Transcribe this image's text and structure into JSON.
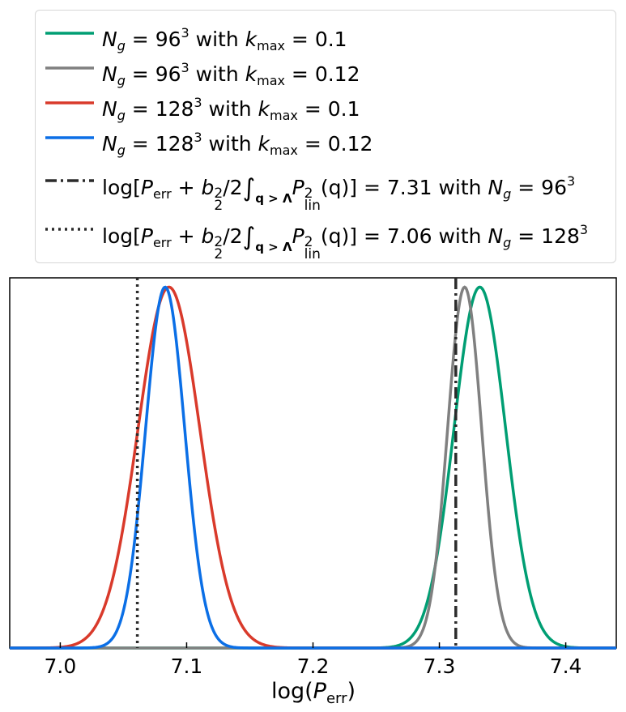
{
  "chart_data": {
    "type": "line",
    "xlabel_main": "log(",
    "xlabel_var": "P",
    "xlabel_sub": "err",
    "xlabel_close": ")",
    "xlim": [
      6.96,
      7.44
    ],
    "xticks": [
      7.0,
      7.1,
      7.2,
      7.3,
      7.4
    ],
    "xtick_labels": [
      "7.0",
      "7.1",
      "7.2",
      "7.3",
      "7.4"
    ],
    "yticks": "none",
    "grid": false,
    "legend_placement": "top (outside plot)",
    "series": [
      {
        "key": "s1",
        "color": "#009E73",
        "mean": 7.332,
        "sigma": 0.0205,
        "peak": 0.975
      },
      {
        "key": "s2",
        "color": "#808080",
        "mean": 7.32,
        "sigma": 0.0135,
        "peak": 0.975
      },
      {
        "key": "s3",
        "color": "#D93A2B",
        "mean": 7.086,
        "sigma": 0.0245,
        "peak": 0.975
      },
      {
        "key": "s4",
        "color": "#0B6FE6",
        "mean": 7.083,
        "sigma": 0.0155,
        "peak": 0.975
      }
    ],
    "vlines": [
      {
        "key": "v1",
        "x": 7.313,
        "style": "dashdot",
        "color": "#2b2b2b"
      },
      {
        "key": "v2",
        "x": 7.061,
        "style": "dotted",
        "color": "#2b2b2b"
      }
    ]
  },
  "legend": {
    "rows": [
      {
        "kind": "line",
        "color": "#009E73",
        "ng": "96",
        "kmax": "0.1"
      },
      {
        "kind": "line",
        "color": "#808080",
        "ng": "96",
        "kmax": "0.12"
      },
      {
        "kind": "line",
        "color": "#D93A2B",
        "ng": "128",
        "kmax": "0.1"
      },
      {
        "kind": "line",
        "color": "#0B6FE6",
        "ng": "128",
        "kmax": "0.12"
      },
      {
        "kind": "dashdot",
        "color": "#2b2b2b",
        "value": "7.31",
        "ng": "96"
      },
      {
        "kind": "dotted",
        "color": "#2b2b2b",
        "value": "7.06",
        "ng": "128"
      }
    ],
    "text": {
      "N": "N",
      "g": "g",
      "eq": " = ",
      "cube": "3",
      "with": " with ",
      "k": "k",
      "max": "max",
      "log_open": "log[",
      "P": "P",
      "err": "err",
      "plus": " + ",
      "b": "b",
      "b_sup": "2",
      "b_sub": "2",
      "half": "/2",
      "integral": "∫",
      "q_sub": "q > Λ",
      "lin_sup": "2",
      "lin_sub": "lin",
      "q_arg": "(q)] = ",
      "q_var": "q"
    }
  }
}
